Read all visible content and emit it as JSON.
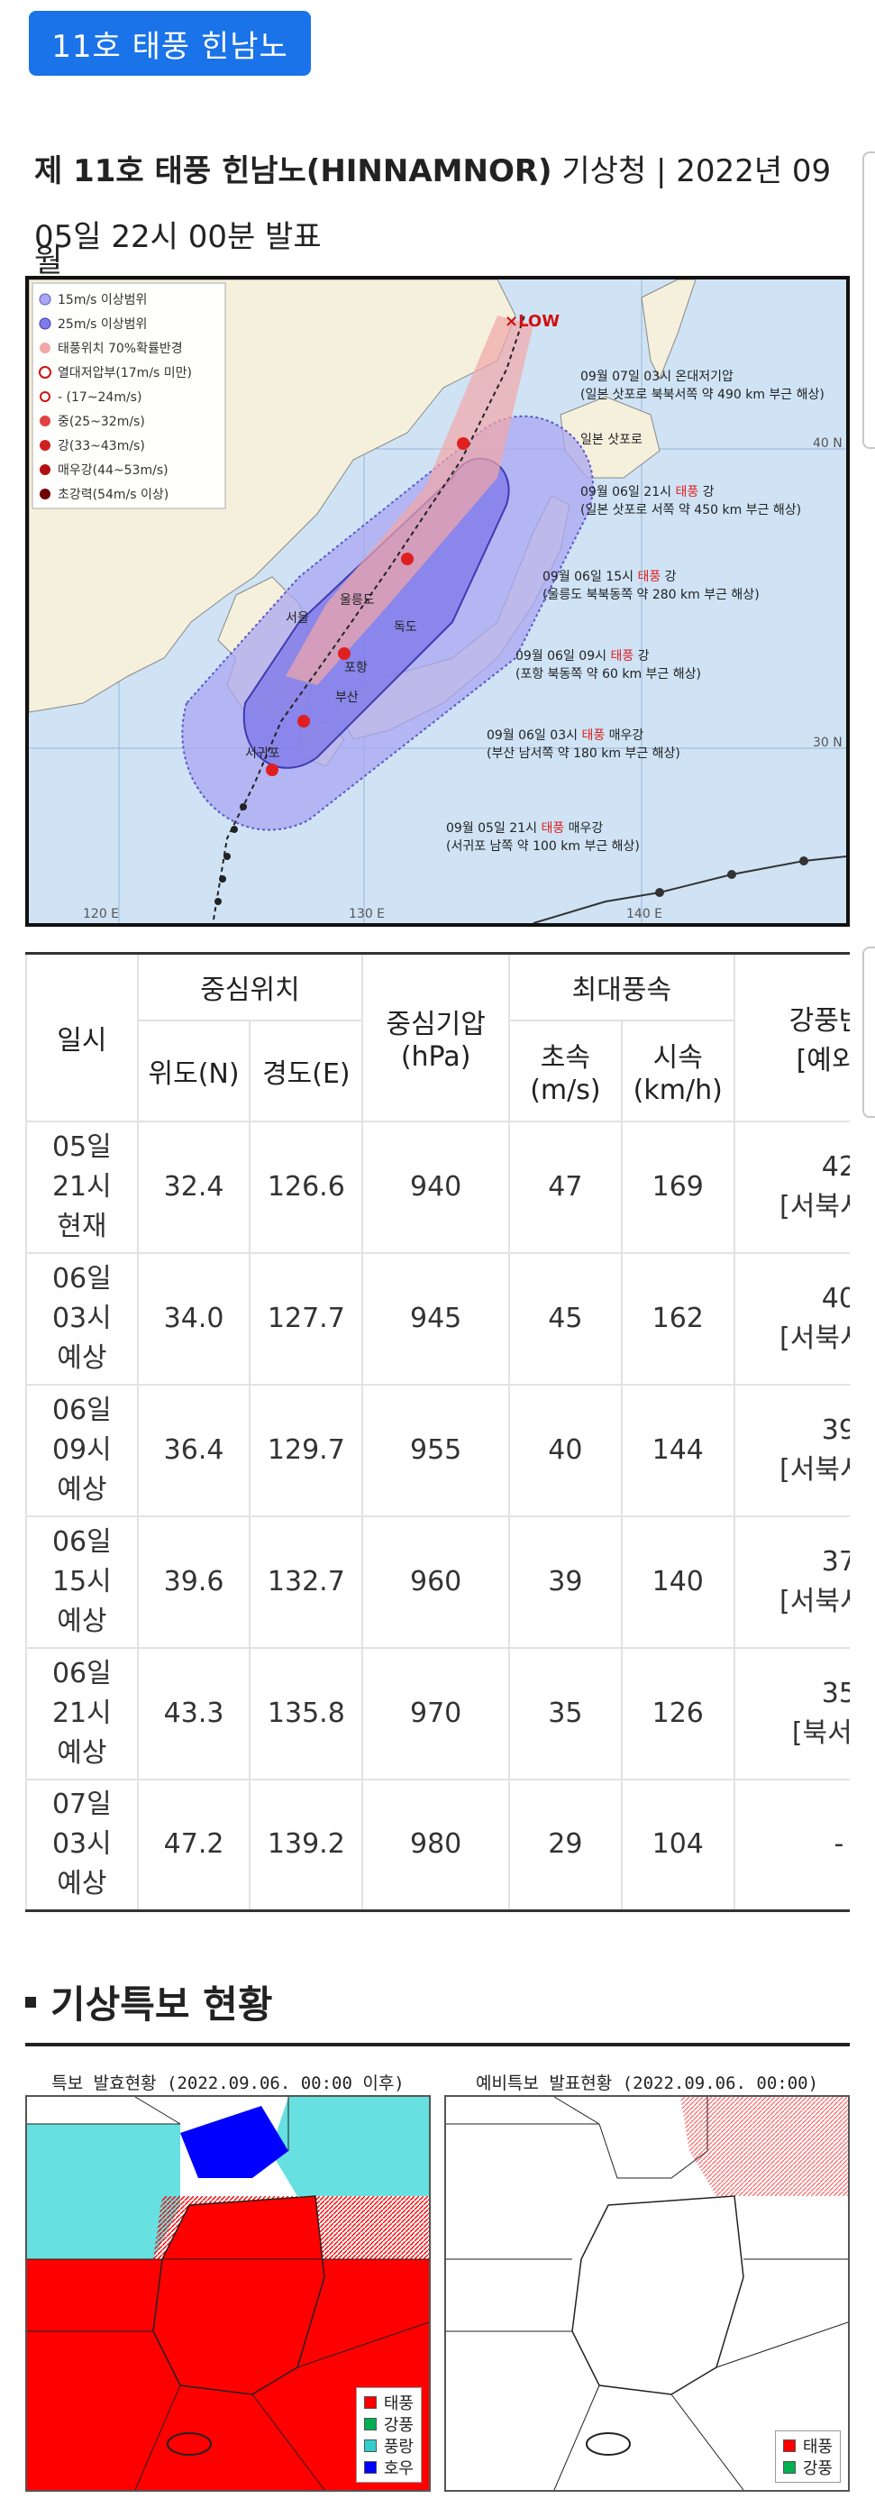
{
  "tag": {
    "label": "11호 태풍 힌남노"
  },
  "headline": {
    "title_bold": "제 11호 태풍 힌남노(HINNAMNOR)",
    "title_rest": " 기상청 | 2022년 09월",
    "line2": "05일 22시 00분 발표"
  },
  "forecast_map": {
    "legend": [
      "15m/s 이상범위",
      "25m/s 이상범위",
      "태풍위치 70%확률반경",
      "열대저압부(17m/s 미만)",
      "- (17~24m/s)",
      "중(25~32m/s)",
      "강(33~43m/s)",
      "매우강(44~53m/s)",
      "초강력(54m/s 이상)"
    ],
    "low_label": "×LOW",
    "annotations": [
      {
        "line1": "09월 07일 03시 온대저기압",
        "line2": "(일본 삿포로 북북서쪽 약 490 km 부근 해상)",
        "grade": ""
      },
      {
        "line1": "09월 06일 21시 ",
        "grade": "태풍",
        "line1b": " 강",
        "line2": "(일본 삿포로 서쪽 약 450 km 부근 해상)"
      },
      {
        "line1": "09월 06일 15시 ",
        "grade": "태풍",
        "line1b": " 강",
        "line2": "(울릉도 북북동쪽 약 280 km 부근 해상)"
      },
      {
        "line1": "09월 06일 09시 ",
        "grade": "태풍",
        "line1b": " 강",
        "line2": "(포항 북동쪽 약 60 km 부근 해상)"
      },
      {
        "line1": "09월 06일 03시 ",
        "grade": "태풍",
        "line1b": " 매우강",
        "line2": "(부산 남서쪽 약 180 km 부근 해상)"
      },
      {
        "line1": "09월 05일 21시 ",
        "grade": "태풍",
        "line1b": " 매우강",
        "line2": "(서귀포 남쪽 약 100 km 부근 해상)"
      }
    ],
    "places": [
      "일본 삿포로",
      "울릉도",
      "독도",
      "서울",
      "포항",
      "부산",
      "서귀포"
    ],
    "lat_labels": [
      "40 N",
      "30 N"
    ],
    "lon_labels": [
      "120 E",
      "130 E",
      "140 E"
    ]
  },
  "table": {
    "headers": {
      "time": "일시",
      "center": "중심위치",
      "lat": "위도(N)",
      "lon": "경도(E)",
      "pressure_l1": "중심기압",
      "pressure_l2": "(hPa)",
      "maxwind": "최대풍속",
      "ms_l1": "초속",
      "ms_l2": "(m/s)",
      "kmh_l1": "시속",
      "kmh_l2": "(km/h)",
      "radius_l1": "강풍반경",
      "radius_l2": "[예외반"
    },
    "rows": [
      {
        "t1": "05일",
        "t2": "21시",
        "t3": "현재",
        "lat": "32.4",
        "lon": "126.6",
        "hpa": "940",
        "ms": "47",
        "kmh": "169",
        "r1": "42",
        "r2": "[서북서 약"
      },
      {
        "t1": "06일",
        "t2": "03시",
        "t3": "예상",
        "lat": "34.0",
        "lon": "127.7",
        "hpa": "945",
        "ms": "45",
        "kmh": "162",
        "r1": "40",
        "r2": "[서북서 약"
      },
      {
        "t1": "06일",
        "t2": "09시",
        "t3": "예상",
        "lat": "36.4",
        "lon": "129.7",
        "hpa": "955",
        "ms": "40",
        "kmh": "144",
        "r1": "39",
        "r2": "[서북서 약"
      },
      {
        "t1": "06일",
        "t2": "15시",
        "t3": "예상",
        "lat": "39.6",
        "lon": "132.7",
        "hpa": "960",
        "ms": "39",
        "kmh": "140",
        "r1": "37",
        "r2": "[서북서 약"
      },
      {
        "t1": "06일",
        "t2": "21시",
        "t3": "예상",
        "lat": "43.3",
        "lon": "135.8",
        "hpa": "970",
        "ms": "35",
        "kmh": "126",
        "r1": "35",
        "r2": "[북서 약"
      },
      {
        "t1": "07일",
        "t2": "03시",
        "t3": "예상",
        "lat": "47.2",
        "lon": "139.2",
        "hpa": "980",
        "ms": "29",
        "kmh": "104",
        "r1": "-",
        "r2": ""
      }
    ]
  },
  "section": {
    "title": "기상특보 현황"
  },
  "warning_maps": {
    "left": {
      "caption": "특보 발효현황 (2022.09.06. 00:00 이후)",
      "legend": [
        {
          "label": "태풍",
          "color": "#ff0000"
        },
        {
          "label": "강풍",
          "color": "#00b050"
        },
        {
          "label": "풍랑",
          "color": "#33cccc"
        },
        {
          "label": "호우",
          "color": "#0000ff"
        }
      ]
    },
    "right": {
      "caption": "예비특보 발표현황 (2022.09.06. 00:00)",
      "legend": [
        {
          "label": "태풍",
          "color": "#ff0000"
        },
        {
          "label": "강풍",
          "color": "#00b050"
        }
      ]
    }
  },
  "colors": {
    "accent": "#1a73e8",
    "typhoon_red": "#ff0000",
    "wave_cyan": "#66e0e0",
    "rain_blue": "#0000ff"
  }
}
